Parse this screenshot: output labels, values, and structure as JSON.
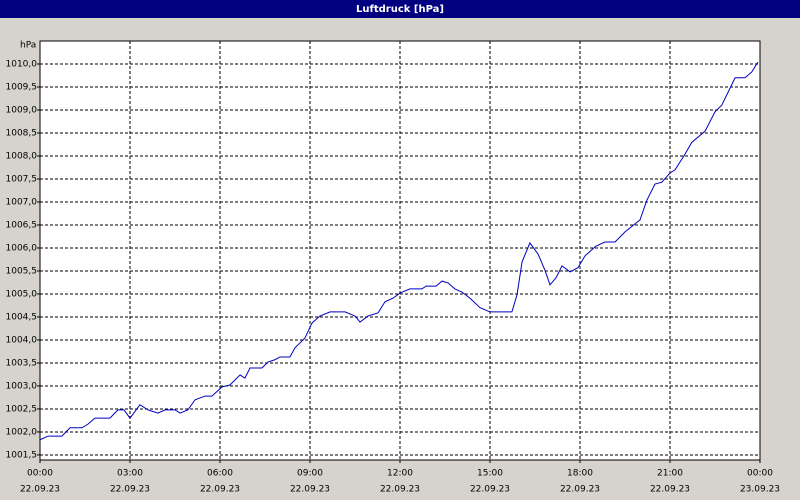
{
  "chart_data": {
    "type": "line",
    "title": "Luftdruck [hPa]",
    "ylabel": "hPa",
    "color": "#0000c0",
    "grid": true,
    "xlim": [
      0,
      24
    ],
    "ylim": [
      1001.39,
      1010.5
    ],
    "xticks": [
      {
        "value": 0,
        "label": "00:00",
        "sublabel": "22.09.23"
      },
      {
        "value": 3,
        "label": "03:00",
        "sublabel": "22.09.23"
      },
      {
        "value": 6,
        "label": "06:00",
        "sublabel": "22.09.23"
      },
      {
        "value": 9,
        "label": "09:00",
        "sublabel": "22.09.23"
      },
      {
        "value": 12,
        "label": "12:00",
        "sublabel": "22.09.23"
      },
      {
        "value": 15,
        "label": "15:00",
        "sublabel": "22.09.23"
      },
      {
        "value": 18,
        "label": "18:00",
        "sublabel": "22.09.23"
      },
      {
        "value": 21,
        "label": "21:00",
        "sublabel": "22.09.23"
      },
      {
        "value": 24,
        "label": "00:00",
        "sublabel": "23.09.23"
      }
    ],
    "yticks": [
      {
        "value": 1001.5,
        "label": "1001,5"
      },
      {
        "value": 1002,
        "label": "1002,0"
      },
      {
        "value": 1002.5,
        "label": "1002,5"
      },
      {
        "value": 1003,
        "label": "1003,0"
      },
      {
        "value": 1003.5,
        "label": "1003,5"
      },
      {
        "value": 1004,
        "label": "1004,0"
      },
      {
        "value": 1004.5,
        "label": "1004,5"
      },
      {
        "value": 1005,
        "label": "1005,0"
      },
      {
        "value": 1005.5,
        "label": "1005,5"
      },
      {
        "value": 1006,
        "label": "1006,0"
      },
      {
        "value": 1006.5,
        "label": "1006,5"
      },
      {
        "value": 1007,
        "label": "1007,0"
      },
      {
        "value": 1007.5,
        "label": "1007,5"
      },
      {
        "value": 1008,
        "label": "1008,0"
      },
      {
        "value": 1008.5,
        "label": "1008,5"
      },
      {
        "value": 1009,
        "label": "1009,0"
      },
      {
        "value": 1009.5,
        "label": "1009,5"
      },
      {
        "value": 1010,
        "label": "1010,0"
      }
    ],
    "x": [
      0,
      0.27,
      0.73,
      1.0,
      1.4,
      1.6,
      1.83,
      2.33,
      2.6,
      2.8,
      3.0,
      3.33,
      3.6,
      3.93,
      4.17,
      4.5,
      4.67,
      4.93,
      5.17,
      5.5,
      5.73,
      6.07,
      6.33,
      6.67,
      6.83,
      7.0,
      7.4,
      7.6,
      7.83,
      8.0,
      8.33,
      8.5,
      8.83,
      9.07,
      9.33,
      9.67,
      10.17,
      10.5,
      10.67,
      10.93,
      11.27,
      11.5,
      11.77,
      12.0,
      12.33,
      12.73,
      12.87,
      13.2,
      13.4,
      13.6,
      13.83,
      14.07,
      14.33,
      14.67,
      15.0,
      15.73,
      15.9,
      16.07,
      16.33,
      16.6,
      16.83,
      17.0,
      17.2,
      17.4,
      17.67,
      17.93,
      18.17,
      18.53,
      18.83,
      19.17,
      19.5,
      20.0,
      20.23,
      20.5,
      20.73,
      21.0,
      21.17,
      21.5,
      21.73,
      22.17,
      22.5,
      22.73,
      23.17,
      23.5,
      23.73,
      23.93
    ],
    "values": [
      1001.83,
      1001.91,
      1001.91,
      1002.09,
      1002.09,
      1002.17,
      1002.3,
      1002.3,
      1002.48,
      1002.48,
      1002.3,
      1002.59,
      1002.48,
      1002.41,
      1002.48,
      1002.48,
      1002.41,
      1002.48,
      1002.7,
      1002.78,
      1002.78,
      1002.98,
      1003.02,
      1003.24,
      1003.17,
      1003.39,
      1003.39,
      1003.52,
      1003.57,
      1003.63,
      1003.63,
      1003.83,
      1004.04,
      1004.37,
      1004.52,
      1004.61,
      1004.61,
      1004.52,
      1004.39,
      1004.52,
      1004.59,
      1004.83,
      1004.91,
      1005.02,
      1005.11,
      1005.11,
      1005.17,
      1005.17,
      1005.28,
      1005.24,
      1005.11,
      1005.04,
      1004.91,
      1004.7,
      1004.61,
      1004.61,
      1004.98,
      1005.7,
      1006.11,
      1005.87,
      1005.52,
      1005.2,
      1005.35,
      1005.61,
      1005.48,
      1005.57,
      1005.83,
      1006.04,
      1006.13,
      1006.13,
      1006.35,
      1006.61,
      1007.04,
      1007.39,
      1007.43,
      1007.63,
      1007.7,
      1008.04,
      1008.3,
      1008.54,
      1008.96,
      1009.11,
      1009.7,
      1009.7,
      1009.83,
      1010.04
    ]
  }
}
